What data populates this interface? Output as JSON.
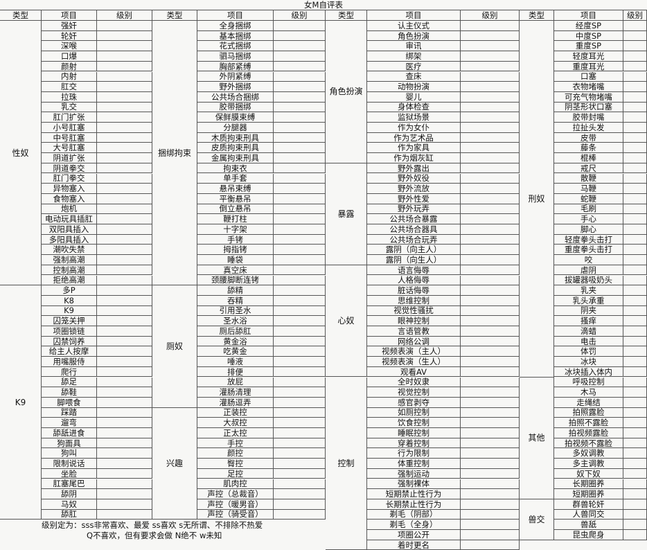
{
  "title": "女M自评表",
  "headers": [
    "类型",
    "项目",
    "级别",
    "类型",
    "项目",
    "级别",
    "类型",
    "项目",
    "级别",
    "类型",
    "项目",
    "级别"
  ],
  "groups": [
    {
      "sections": [
        {
          "type": "性奴",
          "items": [
            "强奸",
            "轮奸",
            "深喉",
            "口爆",
            "颜射",
            "内射",
            "肛交",
            "拉珠",
            "乳交",
            "肛门扩张",
            "小号肛塞",
            "中号肛塞",
            "大号肛塞",
            "阴道扩张",
            "阴道拳交",
            "肛门拳交",
            "异物塞入",
            "食物塞入",
            "炮机",
            "电动玩具插肛",
            "双阳具插入",
            "多阳具插入",
            "潮吹失禁",
            "强制高潮",
            "控制高潮",
            "拒绝高潮"
          ]
        },
        {
          "type": "K9",
          "items": [
            "多P",
            "K8",
            "K9",
            "囚笼关押",
            "项圈锁链",
            "囚禁饲养",
            "给主人按摩",
            "用嘴服侍",
            "爬行",
            "舔足",
            "舔鞋",
            "脚喂食",
            "踩踏",
            "遛弯",
            "舔舐进食",
            "狗面具",
            "狗叫",
            "限制说话",
            "坐脸",
            "肛塞尾巴",
            "舔阴",
            "马奴",
            "舔肛"
          ]
        }
      ]
    },
    {
      "sections": [
        {
          "type": "捆绑拘束",
          "items": [
            "全身捆绑",
            "基本捆绑",
            "花式捆绑",
            "驷马捆绑",
            "胸部紧缚",
            "外阴紧缚",
            "野外捆绑",
            "公共场合捆绑",
            "胶带捆绑",
            "保鲜膜束缚",
            "分腿器",
            "木质拘束刑具",
            "皮质拘束刑具",
            "金属拘束刑具",
            "拘束衣",
            "单手套",
            "悬吊束缚",
            "平衡悬吊",
            "倒立悬吊",
            "鞭打柱",
            "十字架",
            "手铐",
            "拇指铐",
            "睡袋",
            "真空床",
            "颈腰脚断连铐"
          ]
        },
        {
          "type": "厕奴",
          "items": [
            "舔精",
            "吞精",
            "引用圣水",
            "圣水浴",
            "厕后舔肛",
            "黄金浴",
            "吃黄金",
            "唾液",
            "排便",
            "放屁",
            "灌肠清理",
            "灌肠逗弄"
          ]
        },
        {
          "type": "兴趣",
          "items": [
            "正装控",
            "大叔控",
            "正太控",
            "手控",
            "颜控",
            "臀控",
            "足控",
            "肌肉控",
            "声控（总裁音）",
            "声控（暖男音）",
            "声控（骑受音）"
          ]
        }
      ]
    },
    {
      "sections": [
        {
          "type": "角色扮演",
          "items": [
            "认主仪式",
            "角色扮演",
            "审讯",
            "绑架",
            "医疗",
            "查床",
            "动物扮演",
            "婴儿",
            "身体检查",
            "监狱场景",
            "作为女仆",
            "作为艺术品",
            "作为家具",
            "作为烟灰缸"
          ]
        },
        {
          "type": "暴露",
          "items": [
            "野外露出",
            "野外奴役",
            "野外流放",
            "野外性爱",
            "野外玩弄",
            "公共场合暴露",
            "公共场合器具",
            "公共场合玩弄",
            "露阴（向主人）",
            "露阴（向生人）"
          ]
        },
        {
          "type": "心奴",
          "items": [
            "语言侮辱",
            "人格侮辱",
            "脏话侮辱",
            "思维控制",
            "视觉性骚扰",
            "眼神控制",
            "言语管教",
            "网络公调",
            "视频表演（主人）",
            "视频表演（生人）",
            "观看AV"
          ]
        },
        {
          "type": "控制",
          "items": [
            "全时奴隶",
            "视觉控制",
            "感官剥夺",
            "如厕控制",
            "饮食控制",
            "睡眠控制",
            "穿着控制",
            "行为限制",
            "体重控制",
            "强制运动",
            "强制裸体",
            "短期禁止性行为",
            "长期禁止性行为",
            "剃毛（阴部）",
            "剃毛（全身）",
            "项圈公开",
            "着时更名"
          ]
        }
      ]
    },
    {
      "sections": [
        {
          "type": "刑奴",
          "items": [
            "经度SP",
            "中度SP",
            "重度SP",
            "轻度耳光",
            "重度耳光",
            "口塞",
            "衣物堵嘴",
            "可充气物堵嘴",
            "阴茎形状口塞",
            "胶带封嘴",
            "拉扯头发",
            "皮带",
            "藤条",
            "棍棒",
            "戒尺",
            "散鞭",
            "马鞭",
            "蛇鞭",
            "毛刷",
            "手心",
            "脚心",
            "轻度拳头击打",
            "重度拳头击打",
            "咬",
            "虐阴",
            "拔罐器吸奶头",
            "乳夹",
            "乳头承重",
            "阴夹",
            "搔痒",
            "滴蜡",
            "电击",
            "体罚",
            "冰块",
            "冰块插入体内"
          ]
        },
        {
          "type": "其他",
          "items": [
            "呼吸控制",
            "木马",
            "走绳结",
            "拍照露脸",
            "拍照不露脸",
            "拍视频露脸",
            "拍视频不露脸",
            "多奴调教",
            "多主调教",
            "奴下奴",
            "长期圈养",
            "短期圈养"
          ]
        },
        {
          "type": "兽交",
          "items": [
            "群兽轮奸",
            "人兽同交",
            "兽舐",
            "昆虫爬身"
          ]
        }
      ]
    }
  ],
  "footnote": [
    "级别定为：sss非常喜欢、最爱 ss喜欢 s无所谓、不排除不热爱",
    "Q不喜欢，但有要求会做 N绝不 w未知"
  ]
}
